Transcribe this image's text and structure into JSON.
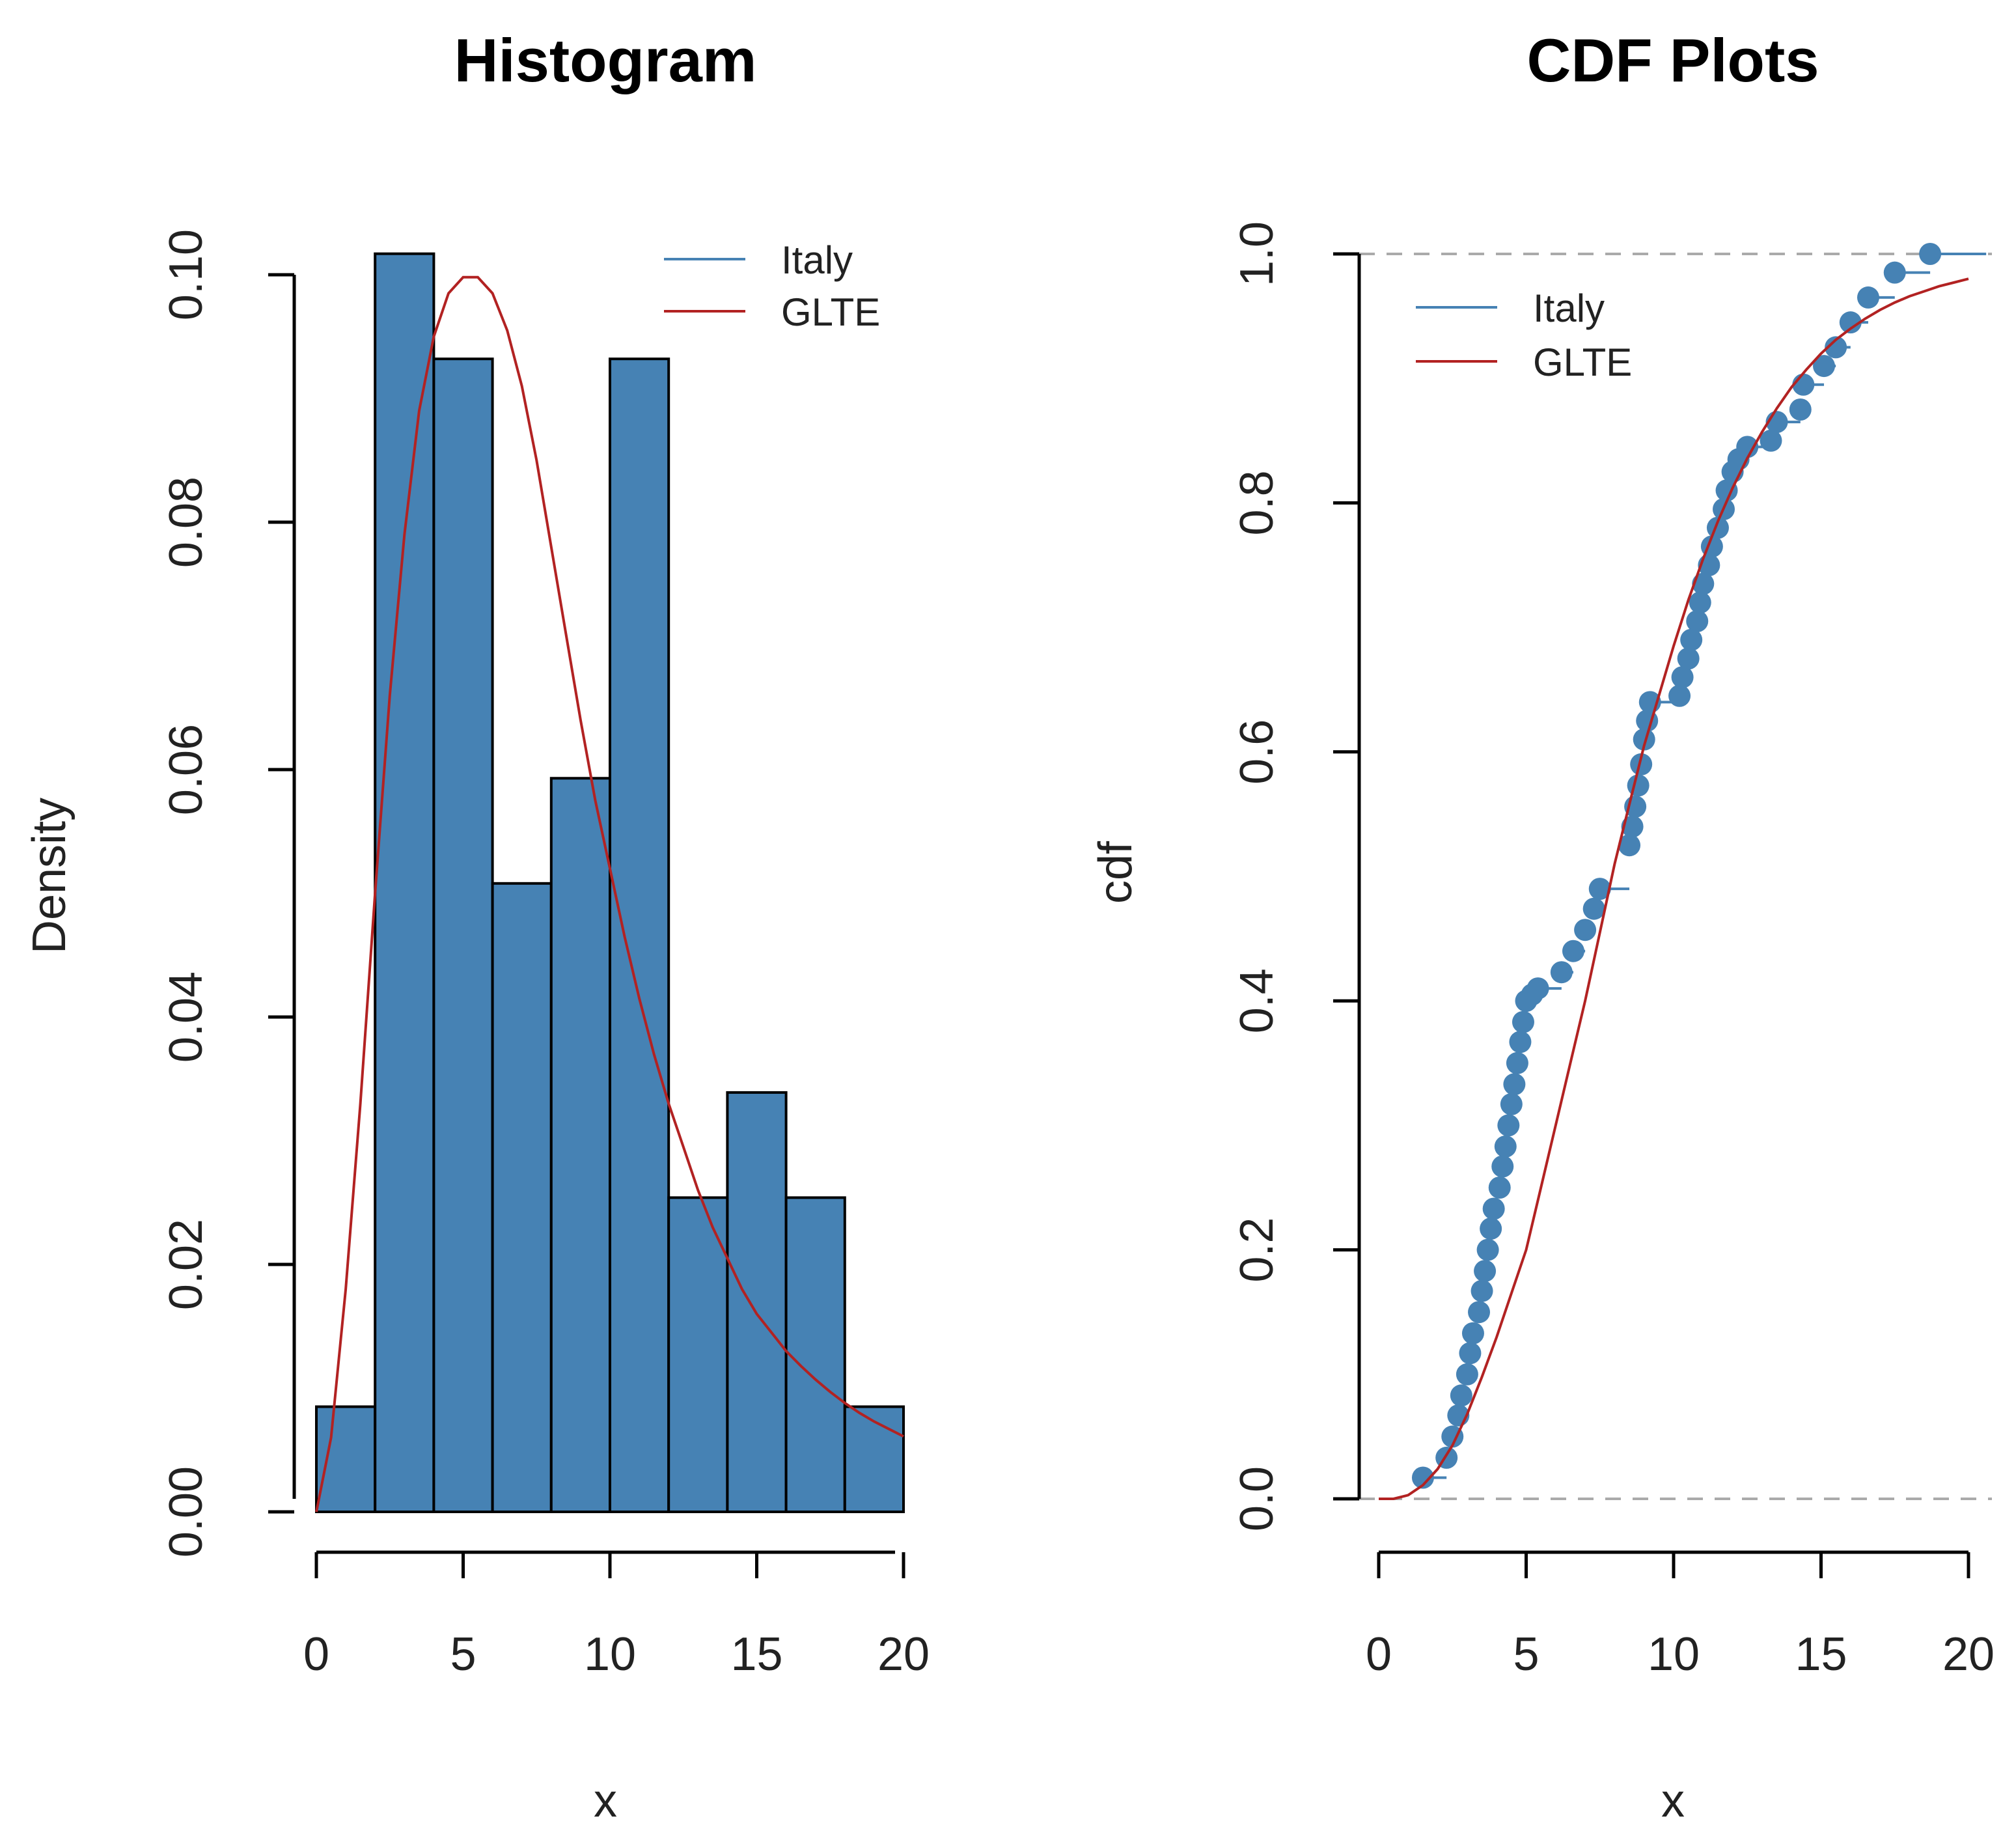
{
  "chart_data": [
    {
      "type": "bar",
      "title": "Histogram",
      "xlabel": "x",
      "ylabel": "Density",
      "xlim": [
        0,
        20
      ],
      "ylim": [
        0,
        0.1
      ],
      "x_ticks": [
        "0",
        "5",
        "10",
        "15",
        "20"
      ],
      "y_ticks": [
        "0.00",
        "0.02",
        "0.04",
        "0.06",
        "0.08",
        "0.10"
      ],
      "bin_edges": [
        0,
        2,
        4,
        6,
        8,
        10,
        12,
        14,
        16,
        18,
        20
      ],
      "values": [
        0.0085,
        0.1017,
        0.0932,
        0.0508,
        0.0593,
        0.0932,
        0.0254,
        0.0339,
        0.0254,
        0.0085
      ],
      "fit_curve": {
        "name": "GLTE",
        "x": [
          0,
          0.5,
          1,
          1.5,
          2,
          2.5,
          3,
          3.5,
          4,
          4.5,
          5,
          5.5,
          6,
          6.5,
          7,
          7.5,
          8,
          8.5,
          9,
          9.5,
          10,
          10.5,
          11,
          11.5,
          12,
          12.5,
          13,
          13.5,
          14,
          14.5,
          15,
          15.5,
          16,
          16.5,
          17,
          17.5,
          18,
          18.5,
          19,
          19.5,
          20
        ],
        "y": [
          0.0,
          0.006,
          0.018,
          0.033,
          0.05,
          0.066,
          0.079,
          0.089,
          0.095,
          0.0985,
          0.0998,
          0.0998,
          0.0985,
          0.0955,
          0.091,
          0.085,
          0.078,
          0.071,
          0.064,
          0.0575,
          0.052,
          0.0465,
          0.0415,
          0.037,
          0.033,
          0.0295,
          0.026,
          0.023,
          0.0205,
          0.018,
          0.016,
          0.0145,
          0.013,
          0.0118,
          0.0107,
          0.0097,
          0.0088,
          0.008,
          0.0073,
          0.0067,
          0.0061
        ]
      },
      "legend": {
        "position": "top-right",
        "entries": [
          {
            "label": "Italy",
            "color": "#4682b4"
          },
          {
            "label": "GLTE",
            "color": "#b22222"
          }
        ]
      },
      "colors": {
        "bar_fill": "#4682b4",
        "bar_edge": "#000000",
        "curve": "#b22222"
      }
    },
    {
      "type": "scatter",
      "title": "CDF Plots",
      "xlabel": "x",
      "ylabel": "cdf",
      "xlim": [
        0,
        20
      ],
      "ylim": [
        0,
        1
      ],
      "x_ticks": [
        "0",
        "5",
        "10",
        "15",
        "20"
      ],
      "y_ticks": [
        "0.0",
        "0.2",
        "0.4",
        "0.6",
        "0.8",
        "1.0"
      ],
      "ecdf_points": {
        "name": "Italy",
        "x": [
          1.5,
          2.3,
          2.5,
          2.7,
          2.8,
          3.0,
          3.1,
          3.2,
          3.4,
          3.5,
          3.6,
          3.7,
          3.8,
          3.9,
          4.1,
          4.2,
          4.3,
          4.4,
          4.5,
          4.6,
          4.7,
          4.8,
          4.9,
          5.0,
          5.2,
          5.4,
          6.2,
          6.6,
          7.0,
          7.3,
          7.5,
          8.5,
          8.6,
          8.7,
          8.8,
          8.9,
          9.0,
          9.1,
          9.2,
          10.2,
          10.3,
          10.5,
          10.6,
          10.8,
          10.9,
          11.0,
          11.2,
          11.3,
          11.5,
          11.7,
          11.8,
          12.0,
          12.2,
          12.5,
          13.3,
          13.5,
          14.3,
          14.4,
          15.1,
          15.5,
          16.0,
          16.6,
          17.5,
          18.7
        ],
        "y": [
          0.017,
          0.033,
          0.05,
          0.067,
          0.083,
          0.1,
          0.117,
          0.133,
          0.15,
          0.167,
          0.183,
          0.2,
          0.217,
          0.233,
          0.25,
          0.267,
          0.283,
          0.3,
          0.317,
          0.333,
          0.35,
          0.367,
          0.383,
          0.4,
          0.405,
          0.41,
          0.423,
          0.44,
          0.457,
          0.474,
          0.49,
          0.525,
          0.54,
          0.556,
          0.573,
          0.59,
          0.61,
          0.625,
          0.64,
          0.645,
          0.66,
          0.675,
          0.69,
          0.705,
          0.72,
          0.735,
          0.75,
          0.765,
          0.78,
          0.795,
          0.81,
          0.825,
          0.835,
          0.845,
          0.85,
          0.865,
          0.875,
          0.895,
          0.91,
          0.925,
          0.945,
          0.965,
          0.985,
          1.0
        ]
      },
      "fit_curve": {
        "name": "GLTE",
        "x": [
          0,
          0.5,
          1,
          1.5,
          2,
          2.5,
          3,
          3.5,
          4,
          4.5,
          5,
          5.5,
          6,
          6.5,
          7,
          7.5,
          8,
          8.5,
          9,
          9.5,
          10,
          10.5,
          11,
          11.5,
          12,
          12.5,
          13,
          13.5,
          14,
          14.5,
          15,
          15.5,
          16,
          16.5,
          17,
          17.5,
          18,
          18.5,
          19,
          19.5,
          20
        ],
        "y": [
          0.0,
          0.0,
          0.003,
          0.011,
          0.024,
          0.043,
          0.068,
          0.098,
          0.13,
          0.165,
          0.2,
          0.25,
          0.3,
          0.35,
          0.4,
          0.455,
          0.51,
          0.558,
          0.605,
          0.645,
          0.685,
          0.722,
          0.755,
          0.785,
          0.812,
          0.836,
          0.857,
          0.876,
          0.893,
          0.907,
          0.92,
          0.931,
          0.94,
          0.948,
          0.955,
          0.961,
          0.966,
          0.97,
          0.974,
          0.977,
          0.98
        ]
      },
      "reference_lines": [
        0,
        1
      ],
      "legend": {
        "position": "top-left",
        "entries": [
          {
            "label": "Italy",
            "color": "#4682b4"
          },
          {
            "label": "GLTE",
            "color": "#b22222"
          }
        ]
      },
      "colors": {
        "points": "#4682b4",
        "curve": "#b22222",
        "reference": "#aaaaaa"
      }
    }
  ]
}
